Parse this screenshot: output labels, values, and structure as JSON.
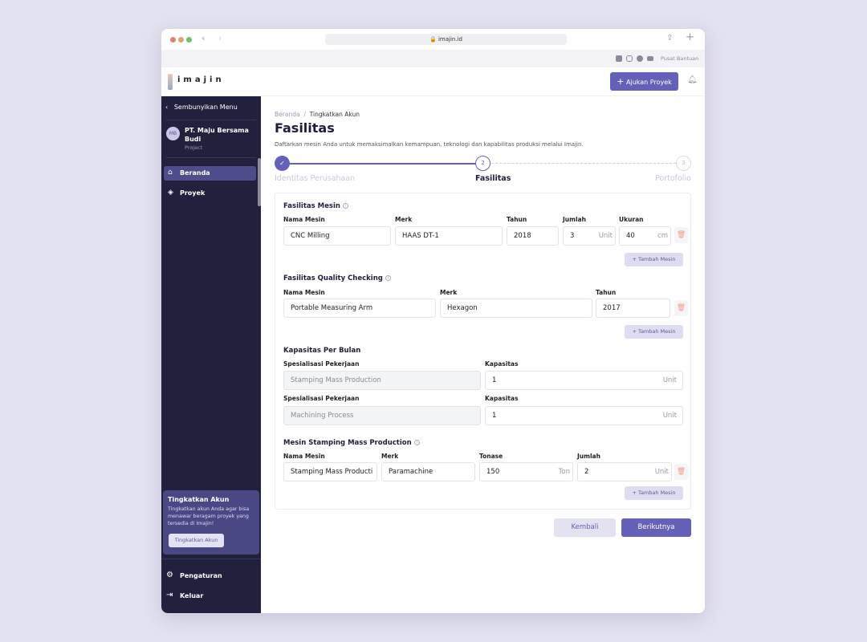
{
  "browser": {
    "url": "imajin.id"
  },
  "topbar": {
    "help": "Pusat Bantuan",
    "social": [
      "linkedin-icon",
      "instagram-icon",
      "facebook-icon",
      "youtube-icon"
    ]
  },
  "header": {
    "logo": "imajin",
    "submit_button": "Ajukan Proyek"
  },
  "sidebar": {
    "hide_menu": "Sembunyikan Menu",
    "company": {
      "initials": "MB",
      "name_line1": "PT. Maju Bersama",
      "name_line2": "Budi",
      "role": "Project"
    },
    "items": [
      {
        "label": "Beranda",
        "icon": "home-icon",
        "active": true
      },
      {
        "label": "Proyek",
        "icon": "box-icon"
      }
    ],
    "upgrade": {
      "title": "Tingkatkan Akun",
      "text_line1": "Tingkatkan akun Anda agar bisa",
      "text_line2": "menawar beragam proyek yang",
      "text_line3": "tersedia di Imajin!",
      "button": "Tingkatkan Akun"
    },
    "bottom": [
      {
        "label": "Pengaturan",
        "icon": "gear-icon"
      },
      {
        "label": "Keluar",
        "icon": "logout-icon"
      }
    ]
  },
  "breadcrumb": [
    "Beranda",
    "Tingkatkan Akun"
  ],
  "page": {
    "title": "Fasilitas",
    "subtitle": "Daftarkan mesin Anda untuk memaksimalkan kemampuan, teknologi dan kapabilitas produksi melalui Imajin."
  },
  "stepper": [
    {
      "num": "✓",
      "label": "Identitas Perusahaan",
      "state": "done"
    },
    {
      "num": "2",
      "label": "Fasilitas",
      "state": "active"
    },
    {
      "num": "3",
      "label": "Portofolio",
      "state": "pending"
    }
  ],
  "mesin": {
    "title": "Fasilitas Mesin",
    "labels": [
      "Nama Mesin",
      "Merk",
      "Tahun",
      "Jumlah",
      "Ukuran"
    ],
    "values": [
      "CNC Milling",
      "HAAS DT-1",
      "2018",
      "3",
      "40"
    ],
    "units": {
      "jumlah": "Unit",
      "ukuran": "cm"
    },
    "add": "+ Tambah Mesin"
  },
  "qc": {
    "title": "Fasilitas Quality Checking",
    "labels": [
      "Nama Mesin",
      "Merk",
      "Tahun"
    ],
    "values": [
      "Portable Measuring Arm",
      "Hexagon",
      "2017"
    ],
    "add": "+ Tambah Mesin"
  },
  "kapasitas": {
    "title": "Kapasitas Per Bulan",
    "label_spec": "Spesialisasi Pekerjaan",
    "label_cap": "Kapasitas",
    "rows": [
      {
        "spec": "Stamping Mass Production",
        "cap": "1",
        "unit": "Unit"
      },
      {
        "spec": "Machining Process",
        "cap": "1",
        "unit": "Unit"
      }
    ]
  },
  "stamping": {
    "title": "Mesin Stamping Mass Production",
    "labels": [
      "Nama Mesin",
      "Merk",
      "Tonase",
      "Jumlah"
    ],
    "values": [
      "Stamping Mass Producti",
      "Paramachine",
      "150",
      "2"
    ],
    "units": {
      "tonase": "Ton",
      "jumlah": "Unit"
    },
    "add": "+ Tambah Mesin"
  },
  "actions": {
    "back": "Kembali",
    "next": "Berikutnya"
  },
  "colors": {
    "primary": "#6561b8",
    "sidebar": "#22213d",
    "danger": "#f29a8a"
  }
}
